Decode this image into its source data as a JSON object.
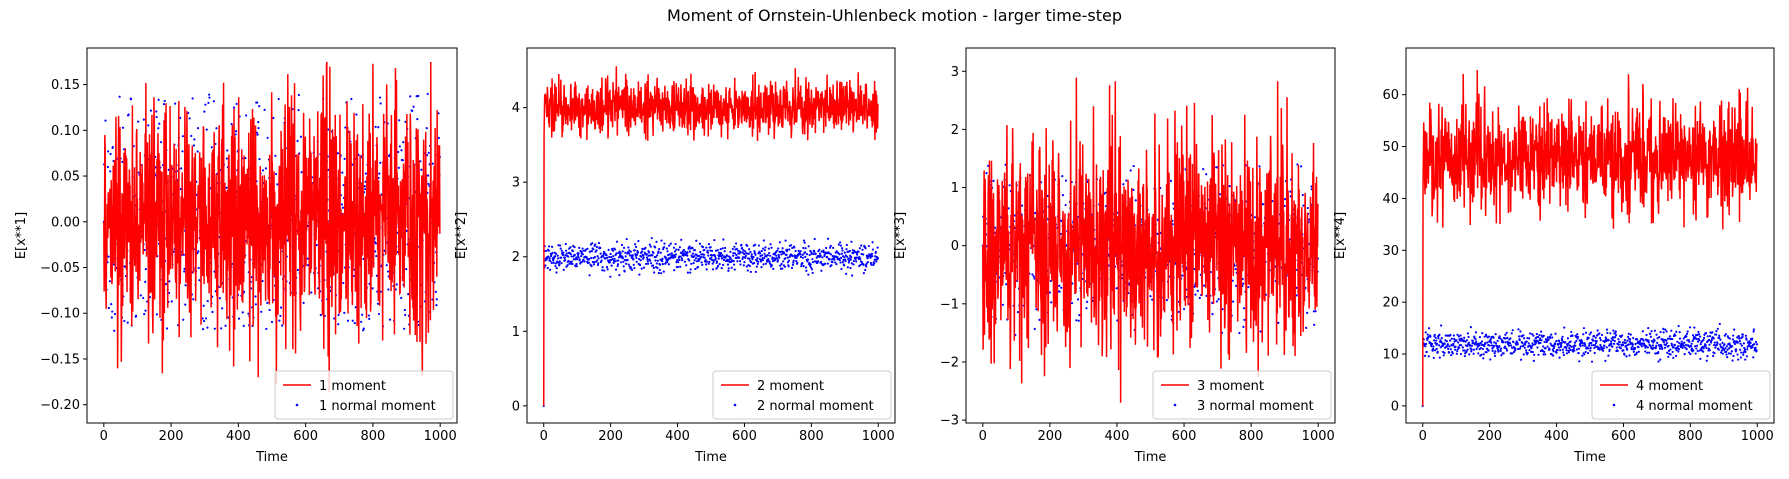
{
  "figure": {
    "title": "Moment of Ornstein-Uhlenbeck motion - larger time-step"
  },
  "colors": {
    "line": "#ff0000",
    "scatter": "#0000ff",
    "axes": "#000000"
  },
  "chart_data": [
    {
      "type": "line",
      "moment": 1,
      "xlabel": "Time",
      "ylabel": "E[x**1]",
      "xlim": [
        -50,
        1050
      ],
      "ylim": [
        -0.22,
        0.19
      ],
      "xticks": [
        0,
        200,
        400,
        600,
        800,
        1000
      ],
      "yticks": [
        -0.2,
        -0.15,
        -0.1,
        -0.05,
        0.0,
        0.05,
        0.1,
        0.15
      ],
      "ytick_labels": [
        "−0.20",
        "−0.15",
        "−0.10",
        "−0.05",
        "0.00",
        "0.05",
        "0.10",
        "0.15"
      ],
      "legend": {
        "position": "lower-right",
        "line": "1 moment",
        "scatter": "1 normal moment"
      },
      "series": {
        "n_points": 1000,
        "start": 0.0,
        "mean": 0.0,
        "std": 0.065,
        "min": -0.2,
        "max": 0.175
      },
      "scatter": {
        "n_points": 1000,
        "start": 0.0,
        "mean": 0.0,
        "std": 0.065,
        "min": -0.12,
        "max": 0.14
      }
    },
    {
      "type": "line",
      "moment": 2,
      "xlabel": "Time",
      "ylabel": "E[x**2]",
      "xlim": [
        -50,
        1050
      ],
      "ylim": [
        -0.23,
        4.8
      ],
      "xticks": [
        0,
        200,
        400,
        600,
        800,
        1000
      ],
      "yticks": [
        0,
        1,
        2,
        3,
        4
      ],
      "ytick_labels": [
        "0",
        "1",
        "2",
        "3",
        "4"
      ],
      "legend": {
        "position": "lower-right",
        "line": "2 moment",
        "scatter": "2 normal moment"
      },
      "series": {
        "n_points": 1000,
        "start": 0.0,
        "mean": 4.0,
        "std": 0.18,
        "min": 3.55,
        "max": 4.6
      },
      "scatter": {
        "n_points": 1000,
        "start": 0.0,
        "mean": 2.0,
        "std": 0.09,
        "min": 1.72,
        "max": 2.25
      }
    },
    {
      "type": "line",
      "moment": 3,
      "xlabel": "Time",
      "ylabel": "E[x**3]",
      "xlim": [
        -50,
        1050
      ],
      "ylim": [
        -3.05,
        3.4
      ],
      "xticks": [
        0,
        200,
        400,
        600,
        800,
        1000
      ],
      "yticks": [
        -3,
        -2,
        -1,
        0,
        1,
        2,
        3
      ],
      "ytick_labels": [
        "−3",
        "−2",
        "−1",
        "0",
        "1",
        "2",
        "3"
      ],
      "legend": {
        "position": "lower-right",
        "line": "3 moment",
        "scatter": "3 normal moment"
      },
      "series": {
        "n_points": 1000,
        "start": 0.0,
        "mean": 0.0,
        "std": 0.9,
        "min": -2.75,
        "max": 3.1
      },
      "scatter": {
        "n_points": 1000,
        "start": 0.0,
        "mean": 0.0,
        "std": 0.6,
        "min": -1.6,
        "max": 1.4
      }
    },
    {
      "type": "line",
      "moment": 4,
      "xlabel": "Time",
      "ylabel": "E[x**4]",
      "xlim": [
        -50,
        1050
      ],
      "ylim": [
        -3.3,
        69
      ],
      "xticks": [
        0,
        200,
        400,
        600,
        800,
        1000
      ],
      "yticks": [
        0,
        10,
        20,
        30,
        40,
        50,
        60
      ],
      "ytick_labels": [
        "0",
        "10",
        "20",
        "30",
        "40",
        "50",
        "60"
      ],
      "legend": {
        "position": "lower-right",
        "line": "4 moment",
        "scatter": "4 normal moment"
      },
      "series": {
        "n_points": 1000,
        "start": 0.0,
        "mean": 48.0,
        "std": 5.0,
        "min": 34.0,
        "max": 65.5
      },
      "scatter": {
        "n_points": 1000,
        "start": 0.0,
        "mean": 12.0,
        "std": 1.3,
        "min": 8.5,
        "max": 16.5
      }
    }
  ]
}
